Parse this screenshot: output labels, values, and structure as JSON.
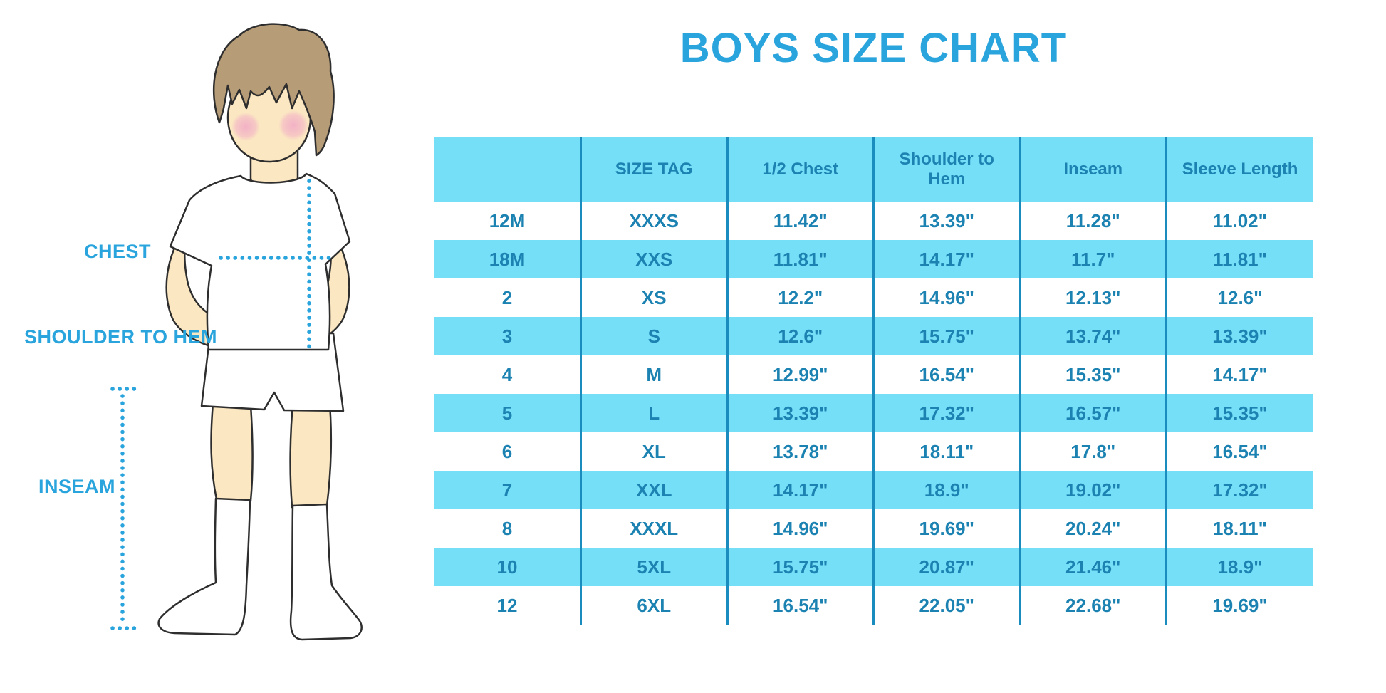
{
  "title": "BOYS SIZE CHART",
  "figure_labels": {
    "chest": "CHEST",
    "shoulder_to_hem": "SHOULDER TO HEM",
    "inseam": "INSEAM"
  },
  "colors": {
    "accent_blue": "#29A4DC",
    "table_fill_cyan": "#76DFF8",
    "table_text_blue": "#1B82B1",
    "table_divider_blue": "#1A8CBD",
    "skin": "#FBE7C2",
    "hair": "#B69C77",
    "blush": "#F2AFC6"
  },
  "chart_data": {
    "type": "table",
    "title": "BOYS SIZE CHART",
    "columns": [
      "",
      "SIZE TAG",
      "1/2 Chest",
      "Shoulder to Hem",
      "Inseam",
      "Sleeve Length"
    ],
    "rows": [
      [
        "12M",
        "XXXS",
        "11.42\"",
        "13.39\"",
        "11.28\"",
        "11.02\""
      ],
      [
        "18M",
        "XXS",
        "11.81\"",
        "14.17\"",
        "11.7\"",
        "11.81\""
      ],
      [
        "2",
        "XS",
        "12.2\"",
        "14.96\"",
        "12.13\"",
        "12.6\""
      ],
      [
        "3",
        "S",
        "12.6\"",
        "15.75\"",
        "13.74\"",
        "13.39\""
      ],
      [
        "4",
        "M",
        "12.99\"",
        "16.54\"",
        "15.35\"",
        "14.17\""
      ],
      [
        "5",
        "L",
        "13.39\"",
        "17.32\"",
        "16.57\"",
        "15.35\""
      ],
      [
        "6",
        "XL",
        "13.78\"",
        "18.11\"",
        "17.8\"",
        "16.54\""
      ],
      [
        "7",
        "XXL",
        "14.17\"",
        "18.9\"",
        "19.02\"",
        "17.32\""
      ],
      [
        "8",
        "XXXL",
        "14.96\"",
        "19.69\"",
        "20.24\"",
        "18.11\""
      ],
      [
        "10",
        "5XL",
        "15.75\"",
        "20.87\"",
        "21.46\"",
        "18.9\""
      ],
      [
        "12",
        "6XL",
        "16.54\"",
        "22.05\"",
        "22.68\"",
        "19.69\""
      ]
    ]
  }
}
